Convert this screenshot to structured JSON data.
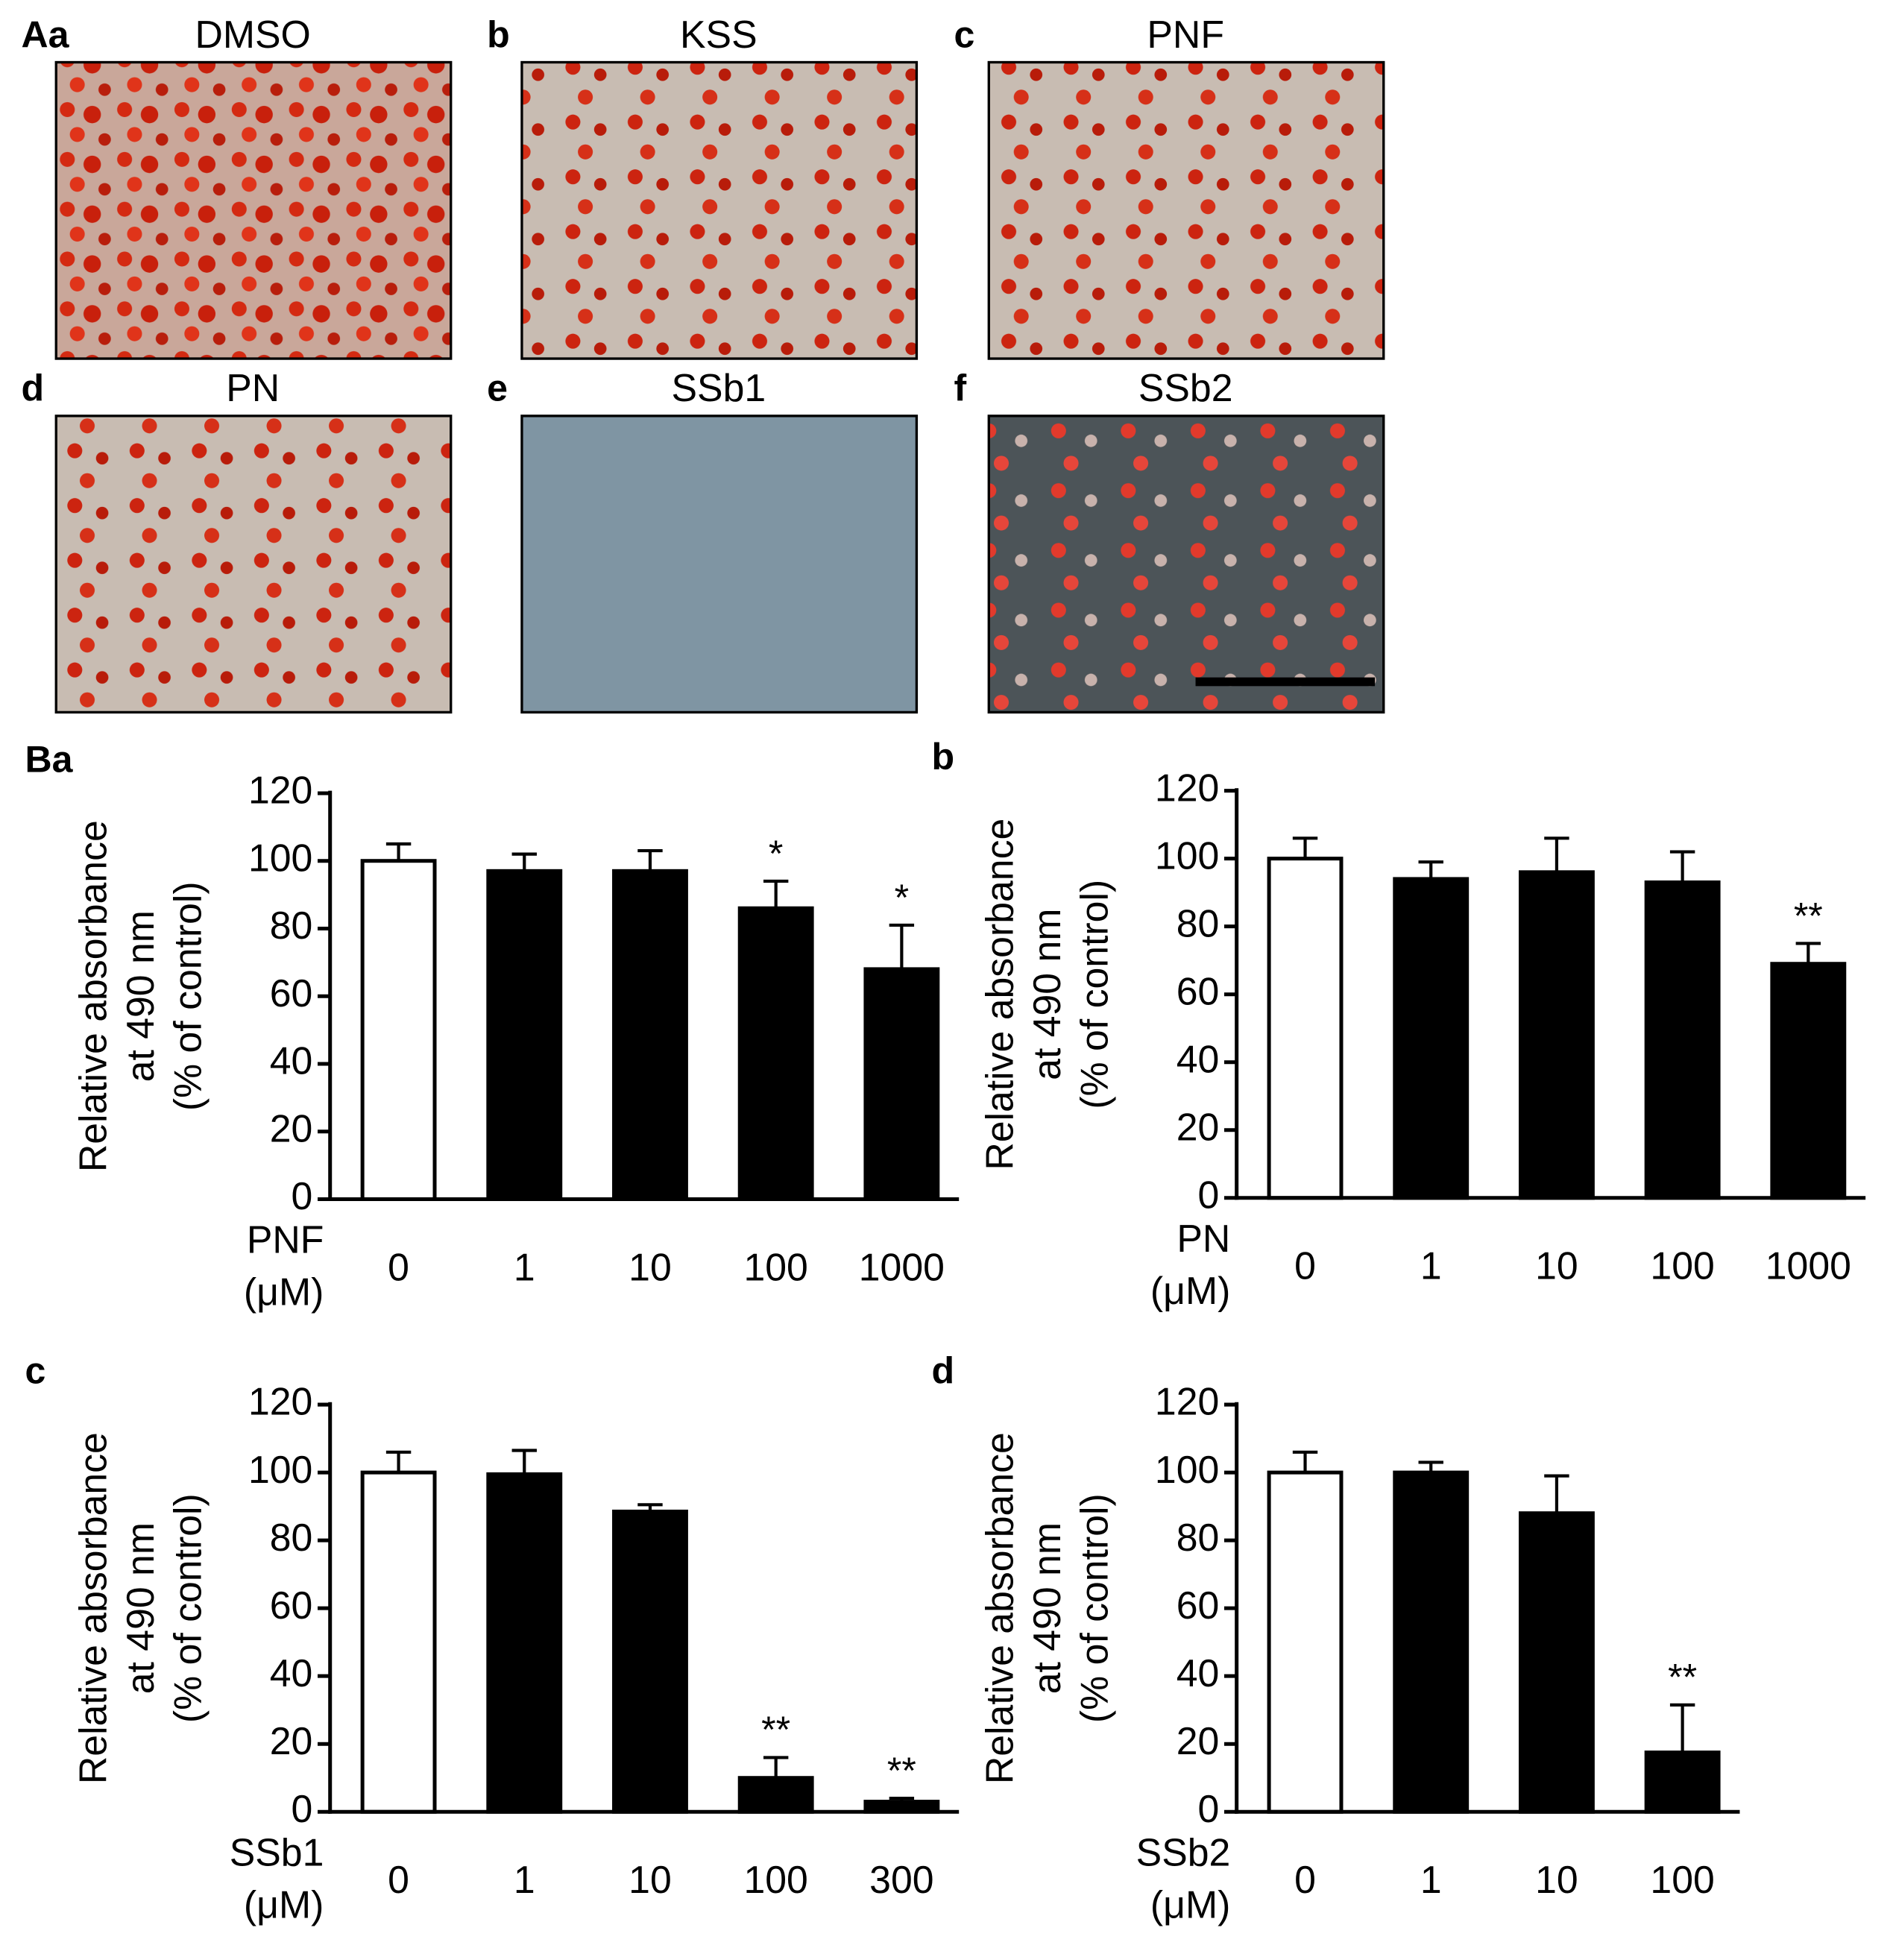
{
  "micrographs": [
    {
      "label": "Aa",
      "title": "DMSO"
    },
    {
      "label": "b",
      "title": "KSS"
    },
    {
      "label": "c",
      "title": "PNF"
    },
    {
      "label": "d",
      "title": "PN"
    },
    {
      "label": "e",
      "title": "SSb1"
    },
    {
      "label": "f",
      "title": "SSb2"
    }
  ],
  "chart_data": [
    {
      "type": "bar",
      "panel": "Ba",
      "ylabel": [
        "Relative absorbance",
        "at 490 nm",
        "(% of control)"
      ],
      "xlabel": [
        "PNF",
        "(μM)"
      ],
      "categories": [
        "0",
        "1",
        "10",
        "100",
        "1000"
      ],
      "values": [
        100,
        97,
        97,
        86,
        68
      ],
      "errors": [
        5,
        5,
        6,
        8,
        13
      ],
      "annotations": [
        null,
        null,
        null,
        "*",
        "*"
      ],
      "colors": [
        "#ffffff",
        "#000000",
        "#000000",
        "#000000",
        "#000000"
      ],
      "ylim": [
        0,
        120
      ],
      "yticks": [
        0,
        20,
        40,
        60,
        80,
        100,
        120
      ]
    },
    {
      "type": "bar",
      "panel": "b",
      "ylabel": [
        "Relative absorbance",
        "at 490 nm",
        "(% of control)"
      ],
      "xlabel": [
        "PN",
        "(μM)"
      ],
      "categories": [
        "0",
        "1",
        "10",
        "100",
        "1000"
      ],
      "values": [
        100,
        94,
        96,
        93,
        69
      ],
      "errors": [
        6,
        5,
        10,
        9,
        6
      ],
      "annotations": [
        null,
        null,
        null,
        null,
        "**"
      ],
      "colors": [
        "#ffffff",
        "#000000",
        "#000000",
        "#000000",
        "#000000"
      ],
      "ylim": [
        0,
        120
      ],
      "yticks": [
        0,
        20,
        40,
        60,
        80,
        100,
        120
      ]
    },
    {
      "type": "bar",
      "panel": "c",
      "ylabel": [
        "Relative absorbance",
        "at 490 nm",
        "(% of control)"
      ],
      "xlabel": [
        "SSb1",
        "(μM)"
      ],
      "categories": [
        "0",
        "1",
        "10",
        "100",
        "300"
      ],
      "values": [
        100,
        99.5,
        88.5,
        10,
        3
      ],
      "errors": [
        6,
        7,
        2,
        6,
        1
      ],
      "annotations": [
        null,
        null,
        null,
        "**",
        "**"
      ],
      "colors": [
        "#ffffff",
        "#000000",
        "#000000",
        "#000000",
        "#000000"
      ],
      "ylim": [
        0,
        120
      ],
      "yticks": [
        0,
        20,
        40,
        60,
        80,
        100,
        120
      ]
    },
    {
      "type": "bar",
      "panel": "d",
      "ylabel": [
        "Relative absorbance",
        "at 490 nm",
        "(% of control)"
      ],
      "xlabel": [
        "SSb2",
        "(μM)"
      ],
      "categories": [
        "0",
        "1",
        "10",
        "100"
      ],
      "values": [
        100,
        100,
        88,
        17.5
      ],
      "errors": [
        6,
        3,
        11,
        14
      ],
      "annotations": [
        null,
        null,
        null,
        "**"
      ],
      "colors": [
        "#ffffff",
        "#000000",
        "#000000",
        "#000000"
      ],
      "ylim": [
        0,
        120
      ],
      "yticks": [
        0,
        20,
        40,
        60,
        80,
        100,
        120
      ]
    }
  ]
}
